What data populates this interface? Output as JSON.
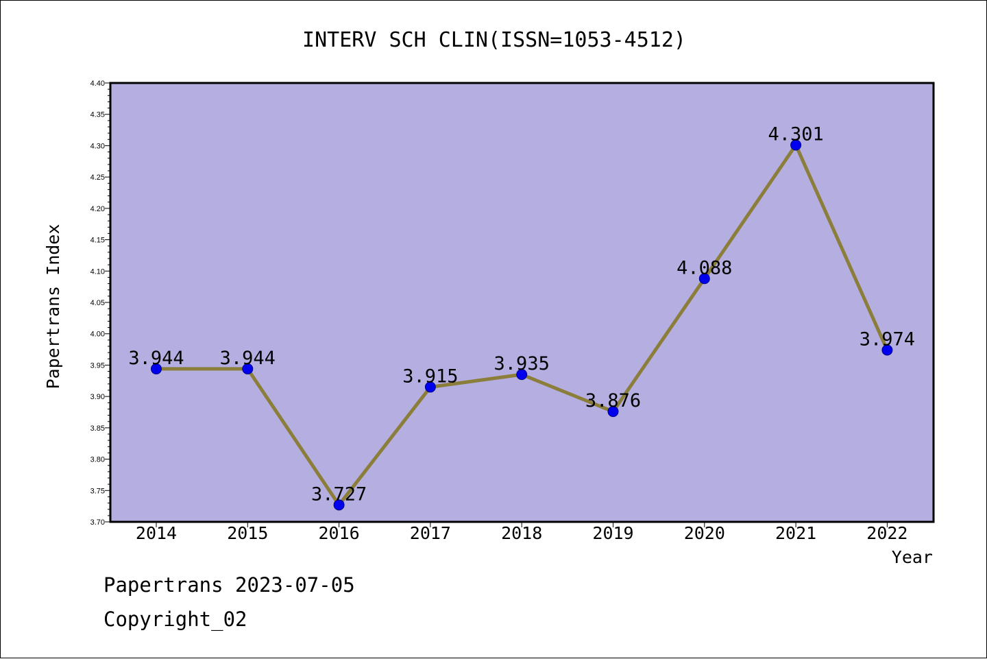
{
  "chart_data": {
    "type": "line",
    "title": "INTERV SCH CLIN(ISSN=1053-4512)",
    "xlabel": "Year",
    "ylabel": "Papertrans Index",
    "categories": [
      "2014",
      "2015",
      "2016",
      "2017",
      "2018",
      "2019",
      "2020",
      "2021",
      "2022"
    ],
    "values": [
      3.944,
      3.944,
      3.727,
      3.915,
      3.935,
      3.876,
      4.088,
      4.301,
      3.974
    ],
    "data_labels": [
      "3.944",
      "3.944",
      "3.727",
      "3.915",
      "3.935",
      "3.876",
      "4.088",
      "4.301",
      "3.974"
    ],
    "ylim": [
      3.7,
      4.4
    ],
    "yticks": [
      "3.70",
      "3.75",
      "3.80",
      "3.85",
      "3.90",
      "3.95",
      "4.00",
      "4.05",
      "4.10",
      "4.15",
      "4.20",
      "4.25",
      "4.30",
      "4.35",
      "4.40"
    ],
    "grid": false,
    "legend": "none",
    "colors": {
      "plot_background": "#b5aee1",
      "line": "#8b7d3a",
      "marker": "#0000ee",
      "marker_edge": "#00008b"
    }
  },
  "footer": {
    "line1": "Papertrans 2023-07-05",
    "line2": "Copyright_02"
  }
}
